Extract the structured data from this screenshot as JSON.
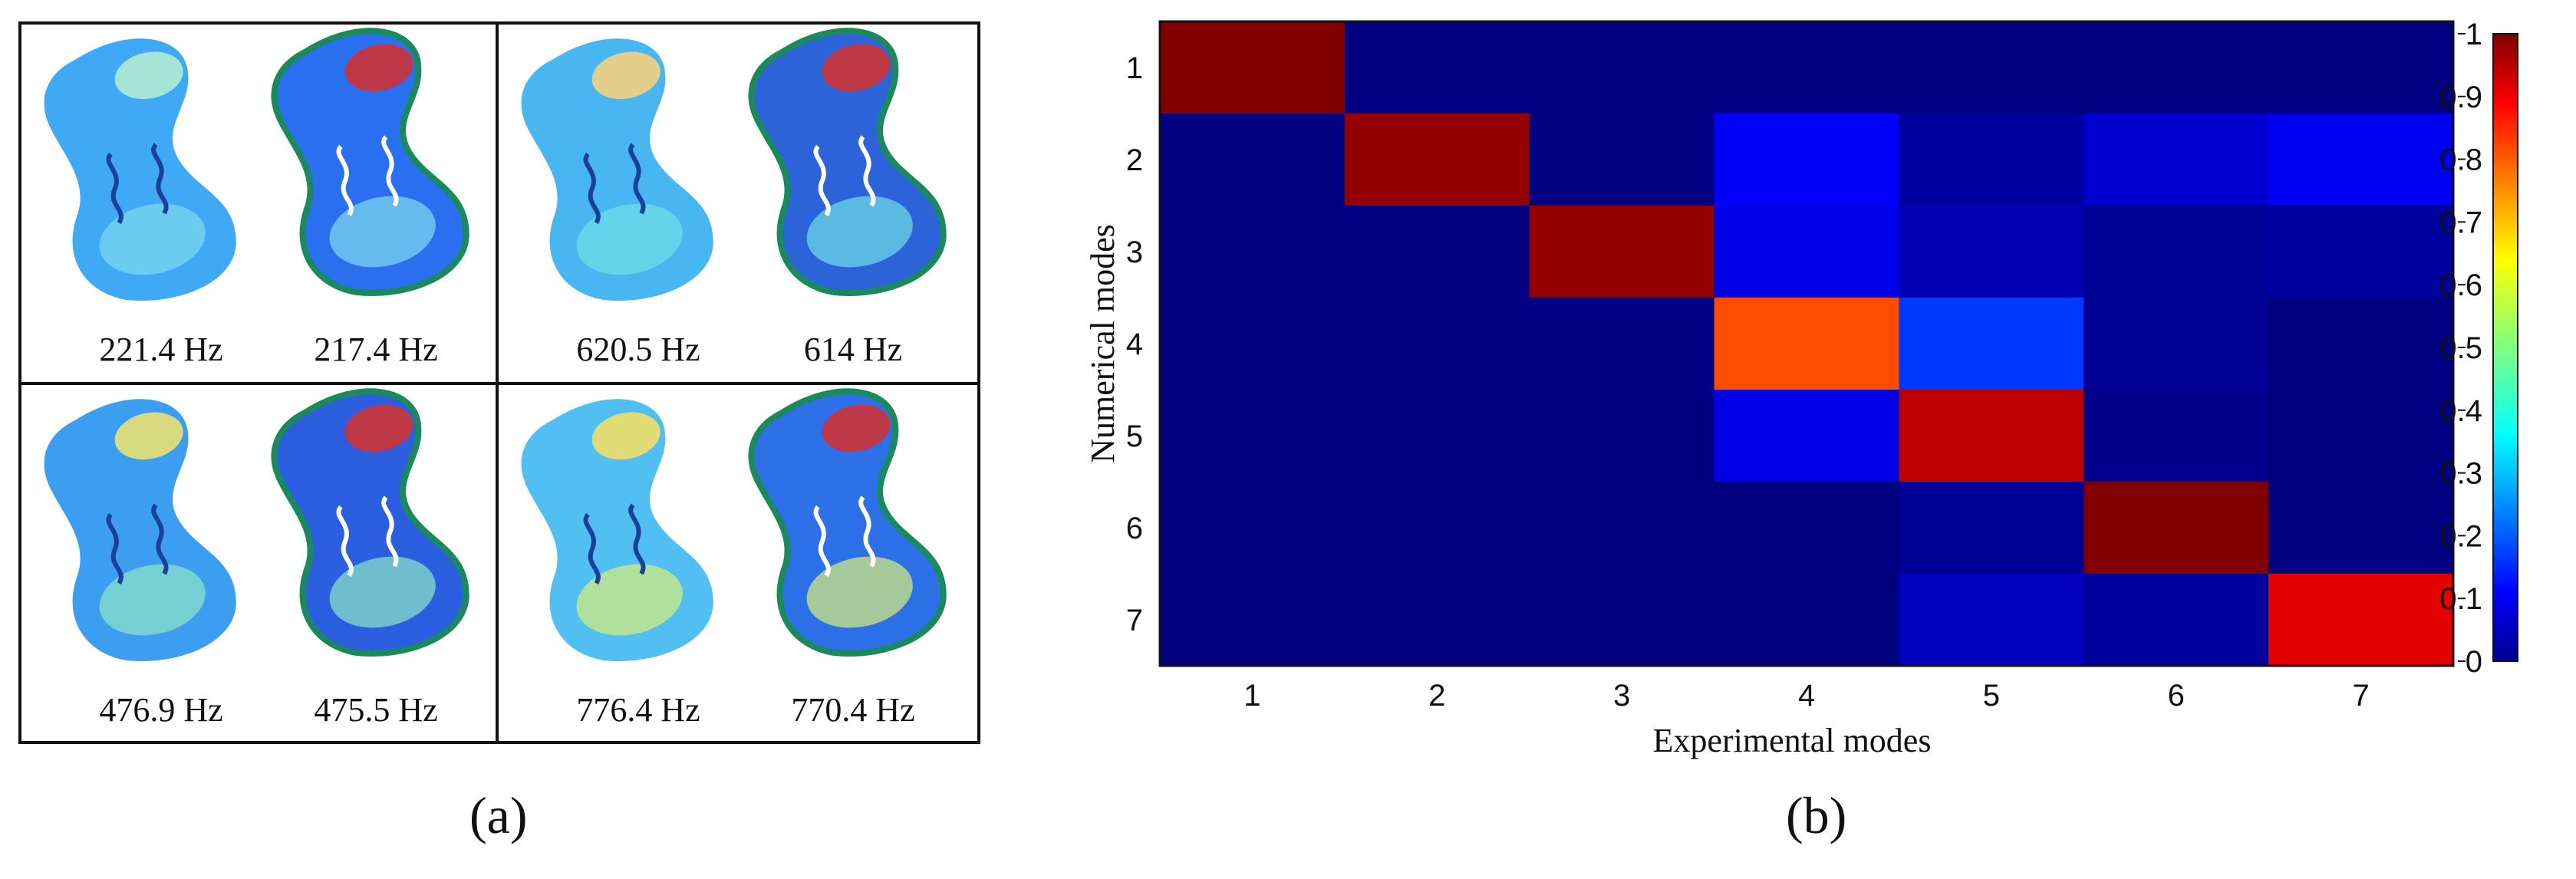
{
  "panel_a": {
    "label": "(a)",
    "cells": [
      {
        "left_freq": "221.4 Hz",
        "right_freq": "217.4 Hz"
      },
      {
        "left_freq": "620.5 Hz",
        "right_freq": "614 Hz"
      },
      {
        "left_freq": "476.9 Hz",
        "right_freq": "475.5 Hz"
      },
      {
        "left_freq": "776.4 Hz",
        "right_freq": "770.4 Hz"
      }
    ]
  },
  "panel_b": {
    "label": "(b)"
  },
  "chart_data": {
    "type": "heatmap",
    "xlabel": "Experimental modes",
    "ylabel": "Numerical modes",
    "x_categories": [
      "1",
      "2",
      "3",
      "4",
      "5",
      "6",
      "7"
    ],
    "y_categories": [
      "1",
      "2",
      "3",
      "4",
      "5",
      "6",
      "7"
    ],
    "values": [
      [
        1.0,
        0.0,
        0.0,
        0.0,
        0.0,
        0.0,
        0.0
      ],
      [
        0.0,
        0.98,
        0.0,
        0.12,
        0.03,
        0.08,
        0.11
      ],
      [
        0.0,
        0.0,
        0.98,
        0.1,
        0.05,
        0.02,
        0.03
      ],
      [
        0.0,
        0.0,
        0.0,
        0.8,
        0.18,
        0.02,
        0.0
      ],
      [
        0.0,
        0.0,
        0.0,
        0.1,
        0.94,
        0.01,
        0.0
      ],
      [
        0.0,
        0.0,
        0.0,
        0.0,
        0.02,
        1.0,
        0.0
      ],
      [
        0.0,
        0.0,
        0.0,
        0.0,
        0.06,
        0.03,
        0.9
      ]
    ],
    "colorbar": {
      "range": [
        0,
        1
      ],
      "ticks": [
        "0",
        "0.1",
        "0.2",
        "0.3",
        "0.4",
        "0.5",
        "0.6",
        "0.7",
        "0.8",
        "0.9",
        "1"
      ],
      "colormap": "jet"
    },
    "grid": false
  }
}
